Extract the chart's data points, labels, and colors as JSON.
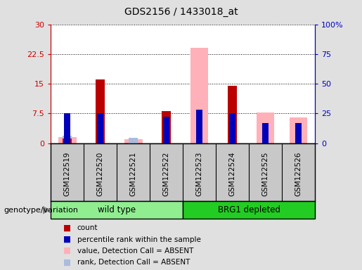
{
  "title": "GDS2156 / 1433018_at",
  "samples": [
    "GSM122519",
    "GSM122520",
    "GSM122521",
    "GSM122522",
    "GSM122523",
    "GSM122524",
    "GSM122525",
    "GSM122526"
  ],
  "groups": [
    "wild type",
    "BRG1 depleted"
  ],
  "count_values": [
    1.2,
    16.0,
    0.0,
    8.0,
    0.0,
    14.5,
    0.0,
    0.0
  ],
  "percentile_values": [
    25.0,
    25.0,
    0.0,
    22.0,
    28.0,
    25.0,
    17.0,
    17.0
  ],
  "absent_value_values": [
    1.5,
    0.0,
    1.0,
    0.0,
    24.0,
    0.0,
    7.8,
    6.5
  ],
  "absent_rank_values": [
    6.0,
    0.0,
    4.5,
    0.0,
    0.0,
    0.0,
    0.0,
    0.0
  ],
  "ylim_left": [
    0,
    30
  ],
  "ylim_right": [
    0,
    100
  ],
  "yticks_left": [
    0,
    7.5,
    15,
    22.5,
    30
  ],
  "ytick_labels_left": [
    "0",
    "7.5",
    "15",
    "22.5",
    "30"
  ],
  "yticks_right": [
    0,
    25,
    50,
    75,
    100
  ],
  "ytick_labels_right": [
    "0",
    "25",
    "50",
    "75",
    "100%"
  ],
  "count_color": "#BB0000",
  "percentile_color": "#0000BB",
  "absent_value_color": "#FFB0B8",
  "absent_rank_color": "#AABBDD",
  "bg_color": "#E0E0E0",
  "plot_bg": "#FFFFFF",
  "xticklabel_bg": "#C8C8C8",
  "group_wt_color": "#90EE90",
  "group_brg_color": "#22CC22",
  "left_axis_color": "#CC0000",
  "right_axis_color": "#0000CC",
  "genotype_label": "genotype/variation"
}
